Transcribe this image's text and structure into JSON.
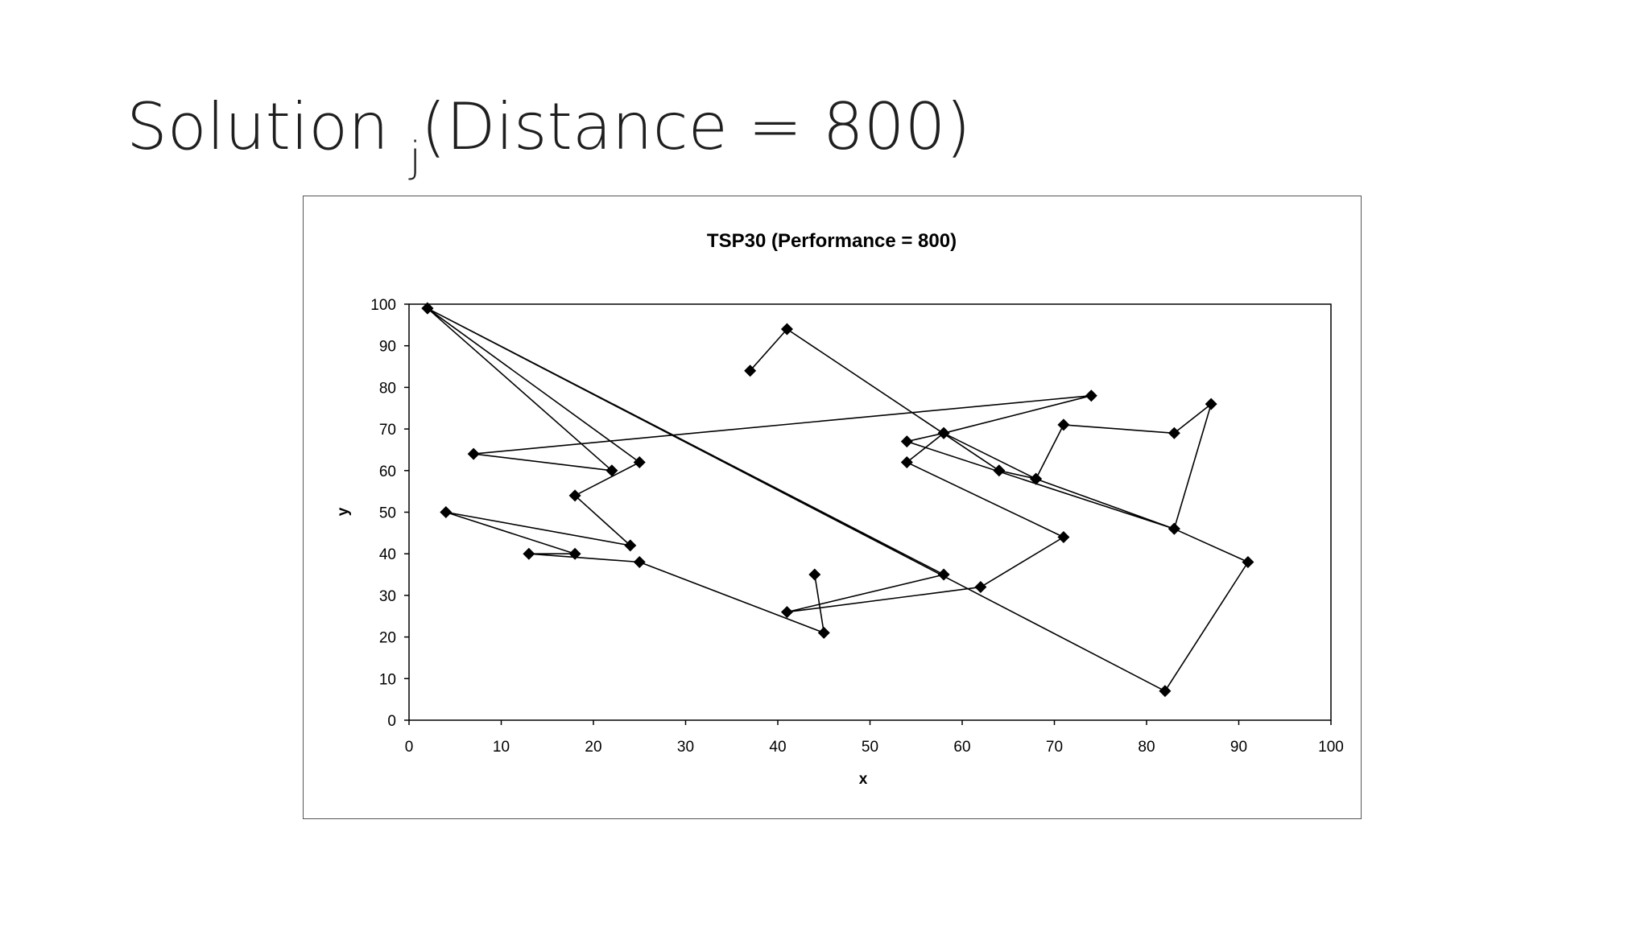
{
  "slide": {
    "title_main": "Solution ",
    "title_sub": "j",
    "title_rest": "(Distance = 800)"
  },
  "chart_data": {
    "type": "line",
    "title": "TSP30 (Performance = 800)",
    "xlabel": "x",
    "ylabel": "y",
    "xlim": [
      0,
      100
    ],
    "ylim": [
      0,
      100
    ],
    "xticks": [
      0,
      10,
      20,
      30,
      40,
      50,
      60,
      70,
      80,
      90,
      100
    ],
    "yticks": [
      0,
      10,
      20,
      30,
      40,
      50,
      60,
      70,
      80,
      90,
      100
    ],
    "grid": false,
    "legend": "none",
    "marker": "diamond",
    "color": "#000000",
    "series": [
      {
        "x": [
          37,
          41,
          64,
          68,
          71,
          83,
          87,
          83,
          54,
          58,
          74,
          7,
          22,
          2,
          58,
          41,
          62,
          71,
          54,
          58,
          68,
          83,
          91,
          82,
          2,
          25,
          18,
          24,
          4,
          18,
          13,
          25,
          45,
          44
        ],
        "y": [
          84,
          94,
          60,
          58,
          71,
          69,
          76,
          46,
          67,
          69,
          78,
          64,
          60,
          99,
          35,
          26,
          32,
          44,
          62,
          69,
          58,
          46,
          38,
          7,
          99,
          62,
          54,
          42,
          50,
          40,
          40,
          38,
          21,
          35
        ]
      }
    ]
  }
}
